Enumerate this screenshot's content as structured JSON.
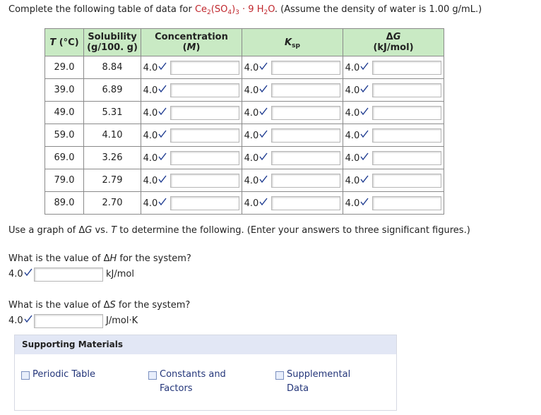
{
  "intro": [
    {
      "text": "Complete the following table of data for "
    },
    {
      "text": "Ce",
      "formula": true
    },
    {
      "text": "2",
      "formula": true,
      "sub": true
    },
    {
      "text": "(SO",
      "formula": true
    },
    {
      "text": "4",
      "formula": true,
      "sub": true
    },
    {
      "text": ")",
      "formula": true
    },
    {
      "text": "3",
      "formula": true,
      "sub": true
    },
    {
      "text": " · 9 H",
      "formula": true
    },
    {
      "text": "2",
      "formula": true,
      "sub": true
    },
    {
      "text": "O",
      "formula": true
    },
    {
      "text": ". (Assume the density of water is 1.00 g/mL.)"
    }
  ],
  "badge": "4.0",
  "table": {
    "headers": [
      [
        [
          {
            "text": "T",
            "italic": true
          },
          {
            "text": " (°C)"
          }
        ]
      ],
      [
        [
          {
            "text": "Solubility"
          }
        ],
        [
          {
            "text": "(g/100. g)"
          }
        ]
      ],
      [
        [
          {
            "text": "Concentration"
          }
        ],
        [
          {
            "text": "("
          },
          {
            "text": "M",
            "italic": true
          },
          {
            "text": ")"
          }
        ]
      ],
      [
        [
          {
            "text": "K",
            "italic": true
          },
          {
            "text": "sp",
            "sub": true
          }
        ]
      ],
      [
        [
          {
            "text": "Δ"
          },
          {
            "text": "G",
            "italic": true
          }
        ],
        [
          {
            "text": "(kJ/mol)"
          }
        ]
      ]
    ],
    "rows": [
      [
        "29.0",
        "8.84"
      ],
      [
        "39.0",
        "6.89"
      ],
      [
        "49.0",
        "5.31"
      ],
      [
        "59.0",
        "4.10"
      ],
      [
        "69.0",
        "3.26"
      ],
      [
        "79.0",
        "2.79"
      ],
      [
        "89.0",
        "2.70"
      ]
    ]
  },
  "instructions": [
    {
      "text": "Use a graph of Δ"
    },
    {
      "text": "G",
      "italic": true
    },
    {
      "text": " vs. "
    },
    {
      "text": "T",
      "italic": true
    },
    {
      "text": " to determine the following. (Enter your answers to three significant figures.)"
    }
  ],
  "questions": [
    {
      "segments": [
        {
          "text": "What is the value of Δ"
        },
        {
          "text": "H",
          "italic": true
        },
        {
          "text": " for the system?"
        }
      ],
      "unit": "kJ/mol"
    },
    {
      "segments": [
        {
          "text": "What is the value of Δ"
        },
        {
          "text": "S",
          "italic": true
        },
        {
          "text": " for the system?"
        }
      ],
      "unit": "J/mol·K"
    }
  ],
  "supporting": {
    "title": "Supporting Materials",
    "links": [
      "Periodic Table",
      "Constants and Factors",
      "Supplemental Data"
    ]
  }
}
